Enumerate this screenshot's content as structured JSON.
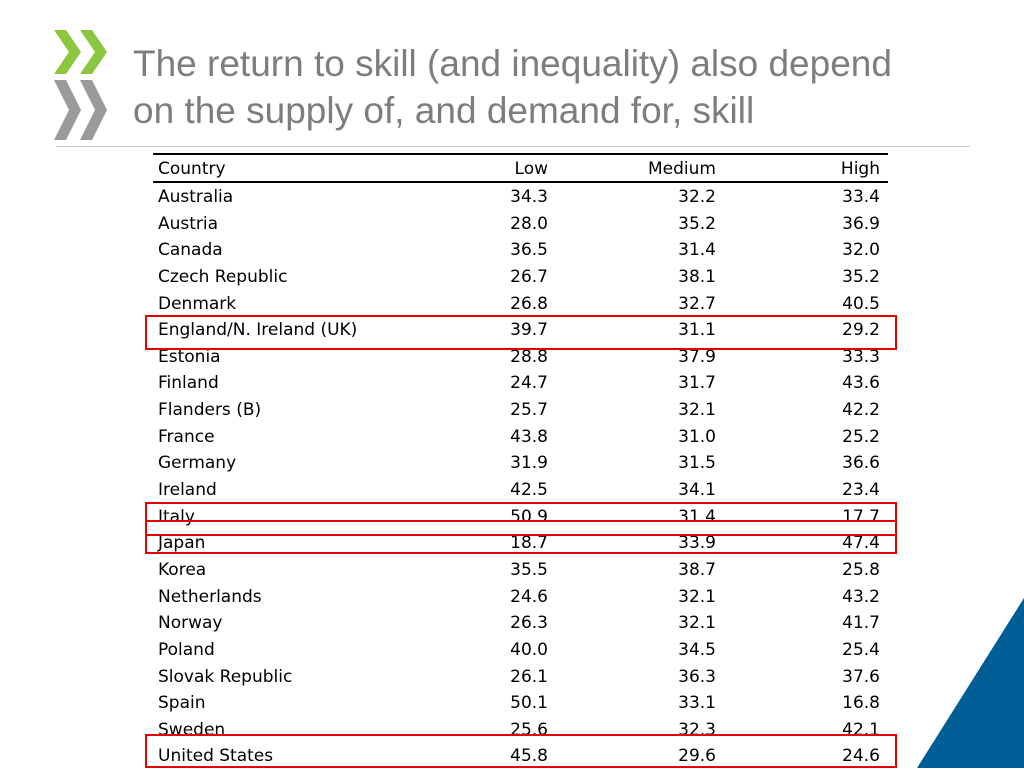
{
  "slide": {
    "title_line1": "The return to skill (and inequality) also depend",
    "title_line2": "on the supply of, and demand for, skill"
  },
  "colors": {
    "logo_green": "#8cc63f",
    "logo_gray": "#9a9a9a",
    "corner_blue": "#005e97",
    "title_gray": "#7d7d7d",
    "highlight_red": "#e30000"
  },
  "icons": {
    "logo": "oecd-chevron-logo-icon"
  },
  "table": {
    "headers": {
      "country": "Country",
      "low": "Low",
      "medium": "Medium",
      "high": "High"
    },
    "rows": [
      {
        "country": "Australia",
        "low": "34.3",
        "medium": "32.2",
        "high": "33.4"
      },
      {
        "country": "Austria",
        "low": "28.0",
        "medium": "35.2",
        "high": "36.9"
      },
      {
        "country": "Canada",
        "low": "36.5",
        "medium": "31.4",
        "high": "32.0"
      },
      {
        "country": "Czech Republic",
        "low": "26.7",
        "medium": "38.1",
        "high": "35.2"
      },
      {
        "country": "Denmark",
        "low": "26.8",
        "medium": "32.7",
        "high": "40.5"
      },
      {
        "country": "England/N. Ireland (UK)",
        "low": "39.7",
        "medium": "31.1",
        "high": "29.2"
      },
      {
        "country": "Estonia",
        "low": "28.8",
        "medium": "37.9",
        "high": "33.3"
      },
      {
        "country": "Finland",
        "low": "24.7",
        "medium": "31.7",
        "high": "43.6"
      },
      {
        "country": "Flanders (B)",
        "low": "25.7",
        "medium": "32.1",
        "high": "42.2"
      },
      {
        "country": "France",
        "low": "43.8",
        "medium": "31.0",
        "high": "25.2"
      },
      {
        "country": "Germany",
        "low": "31.9",
        "medium": "31.5",
        "high": "36.6"
      },
      {
        "country": "Ireland",
        "low": "42.5",
        "medium": "34.1",
        "high": "23.4"
      },
      {
        "country": "Italy",
        "low": "50.9",
        "medium": "31.4",
        "high": "17.7"
      },
      {
        "country": "Japan",
        "low": "18.7",
        "medium": "33.9",
        "high": "47.4"
      },
      {
        "country": "Korea",
        "low": "35.5",
        "medium": "38.7",
        "high": "25.8"
      },
      {
        "country": "Netherlands",
        "low": "24.6",
        "medium": "32.1",
        "high": "43.2"
      },
      {
        "country": "Norway",
        "low": "26.3",
        "medium": "32.1",
        "high": "41.7"
      },
      {
        "country": "Poland",
        "low": "40.0",
        "medium": "34.5",
        "high": "25.4"
      },
      {
        "country": "Slovak Republic",
        "low": "26.1",
        "medium": "36.3",
        "high": "37.6"
      },
      {
        "country": "Spain",
        "low": "50.1",
        "medium": "33.1",
        "high": "16.8"
      },
      {
        "country": "Sweden",
        "low": "25.6",
        "medium": "32.3",
        "high": "42.1"
      },
      {
        "country": "United States",
        "low": "45.8",
        "medium": "29.6",
        "high": "24.6"
      }
    ],
    "highlighted_countries": [
      "England/N. Ireland (UK)",
      "Italy",
      "Japan",
      "United States"
    ]
  }
}
